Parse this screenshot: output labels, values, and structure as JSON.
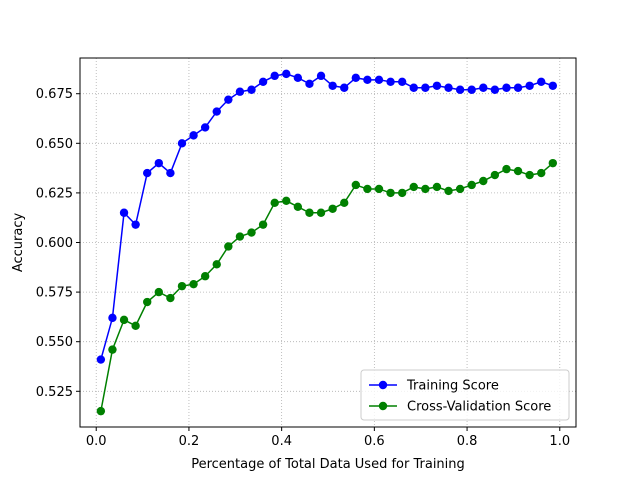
{
  "chart_data": {
    "type": "line",
    "xlabel": "Percentage of Total Data Used for Training",
    "ylabel": "Accuracy",
    "xlim": [
      -0.035,
      1.035
    ],
    "ylim": [
      0.507,
      0.693
    ],
    "xticks": [
      0.0,
      0.2,
      0.4,
      0.6,
      0.8,
      1.0
    ],
    "xtick_labels": [
      "0.0",
      "0.2",
      "0.4",
      "0.6",
      "0.8",
      "1.0"
    ],
    "yticks": [
      0.525,
      0.55,
      0.575,
      0.6,
      0.625,
      0.65,
      0.675
    ],
    "ytick_labels": [
      "0.525",
      "0.550",
      "0.575",
      "0.600",
      "0.625",
      "0.650",
      "0.675"
    ],
    "grid": true,
    "legend_position": "bottom-right",
    "x": [
      0.01,
      0.035,
      0.06,
      0.085,
      0.11,
      0.135,
      0.16,
      0.185,
      0.21,
      0.235,
      0.26,
      0.285,
      0.31,
      0.335,
      0.36,
      0.385,
      0.41,
      0.435,
      0.46,
      0.485,
      0.51,
      0.535,
      0.56,
      0.585,
      0.61,
      0.635,
      0.66,
      0.685,
      0.71,
      0.735,
      0.76,
      0.785,
      0.81,
      0.835,
      0.86,
      0.885,
      0.91,
      0.935,
      0.96,
      0.985
    ],
    "series": [
      {
        "name": "Training Score",
        "color": "#0000ff",
        "values": [
          0.541,
          0.562,
          0.615,
          0.609,
          0.635,
          0.64,
          0.635,
          0.65,
          0.654,
          0.658,
          0.666,
          0.672,
          0.676,
          0.677,
          0.681,
          0.684,
          0.685,
          0.683,
          0.68,
          0.684,
          0.679,
          0.678,
          0.683,
          0.682,
          0.682,
          0.681,
          0.681,
          0.678,
          0.678,
          0.679,
          0.678,
          0.677,
          0.677,
          0.678,
          0.677,
          0.678,
          0.678,
          0.679,
          0.681,
          0.679
        ]
      },
      {
        "name": "Cross-Validation Score",
        "color": "#008000",
        "values": [
          0.515,
          0.546,
          0.561,
          0.558,
          0.57,
          0.575,
          0.572,
          0.578,
          0.579,
          0.583,
          0.589,
          0.598,
          0.603,
          0.605,
          0.609,
          0.62,
          0.621,
          0.618,
          0.615,
          0.615,
          0.617,
          0.62,
          0.629,
          0.627,
          0.627,
          0.625,
          0.625,
          0.628,
          0.627,
          0.628,
          0.626,
          0.627,
          0.629,
          0.631,
          0.634,
          0.637,
          0.636,
          0.634,
          0.635,
          0.64
        ]
      }
    ]
  }
}
